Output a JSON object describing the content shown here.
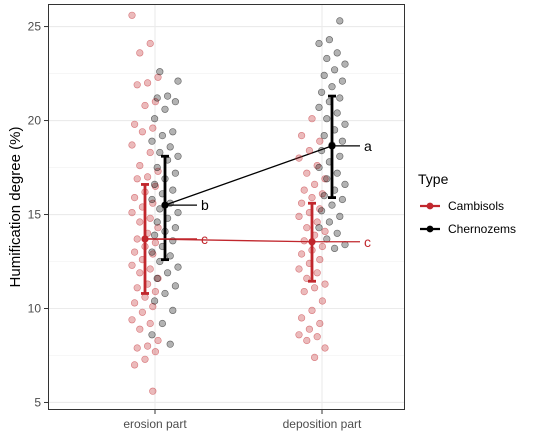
{
  "chart_data": {
    "type": "scatter",
    "title": "",
    "xlabel": "",
    "ylabel": "Humification degree (%)",
    "categories": [
      "erosion part",
      "deposition part"
    ],
    "ylim": [
      4.6,
      26.2
    ],
    "yticks": [
      5,
      10,
      15,
      20,
      25
    ],
    "grid": true,
    "legend": {
      "title": "Type",
      "placement": "right",
      "entries": [
        "Cambisols",
        "Chernozems"
      ]
    },
    "series": [
      {
        "name": "Cambisols",
        "color": "#c1272d",
        "means": [
          13.7,
          13.55
        ],
        "error_low": [
          10.8,
          11.45
        ],
        "error_high": [
          16.6,
          15.6
        ],
        "letters": [
          "c",
          "c"
        ],
        "letter_anchor_y": [
          13.7,
          13.55
        ],
        "points": [
          [
            25.6,
            24.1,
            23.6,
            22.3,
            22.0,
            21.9,
            21.0,
            20.8,
            19.8,
            19.6,
            19.4,
            18.7,
            18.3,
            17.6,
            17.3,
            17.0,
            16.9,
            16.5,
            16.2,
            15.9,
            15.6,
            15.4,
            15.1,
            14.8,
            14.6,
            14.3,
            14.0,
            13.7,
            13.5,
            13.3,
            13.0,
            12.9,
            12.6,
            12.3,
            12.1,
            11.9,
            11.6,
            11.3,
            11.1,
            10.9,
            10.6,
            10.3,
            10.1,
            9.8,
            9.4,
            9.2,
            8.9,
            8.3,
            8.0,
            7.9,
            7.7,
            7.3,
            7.0,
            5.6
          ],
          [
            20.1,
            19.2,
            18.9,
            18.4,
            18.0,
            17.6,
            17.2,
            16.9,
            16.6,
            16.3,
            16.1,
            15.9,
            15.6,
            15.3,
            15.1,
            14.9,
            14.6,
            14.3,
            14.1,
            13.9,
            13.6,
            13.3,
            13.1,
            12.9,
            12.6,
            12.4,
            12.1,
            11.9,
            11.6,
            11.3,
            11.1,
            10.9,
            10.4,
            9.9,
            9.5,
            9.2,
            8.9,
            8.6,
            8.5,
            8.3,
            7.9,
            7.4
          ]
        ]
      },
      {
        "name": "Chernozems",
        "color": "#000000",
        "means": [
          15.5,
          18.65
        ],
        "error_low": [
          12.6,
          15.9
        ],
        "error_high": [
          18.1,
          21.3
        ],
        "letters": [
          "b",
          "a"
        ],
        "letter_anchor_y": [
          15.5,
          18.65
        ],
        "points": [
          [
            22.6,
            22.1,
            21.3,
            21.2,
            21.0,
            20.6,
            20.1,
            19.4,
            19.2,
            18.9,
            18.6,
            18.3,
            18.1,
            17.9,
            17.5,
            17.2,
            16.9,
            16.6,
            16.3,
            16.1,
            15.8,
            15.6,
            15.3,
            15.1,
            14.8,
            14.6,
            14.3,
            14.1,
            13.9,
            13.6,
            13.3,
            13.0,
            12.8,
            12.5,
            12.2,
            11.9,
            11.6,
            11.2,
            10.8,
            10.4,
            9.9,
            9.2,
            8.6,
            8.1
          ],
          [
            25.3,
            24.3,
            24.1,
            23.6,
            23.3,
            23.0,
            22.7,
            22.4,
            22.1,
            21.8,
            21.5,
            21.2,
            21.0,
            20.7,
            20.4,
            20.1,
            19.8,
            19.5,
            19.2,
            18.9,
            18.7,
            18.4,
            18.1,
            17.8,
            17.5,
            17.2,
            16.9,
            16.6,
            16.3,
            16.0,
            15.8,
            15.5,
            15.2,
            14.9,
            14.6,
            14.3,
            14.0,
            13.7,
            13.4,
            13.2
          ]
        ]
      }
    ]
  }
}
